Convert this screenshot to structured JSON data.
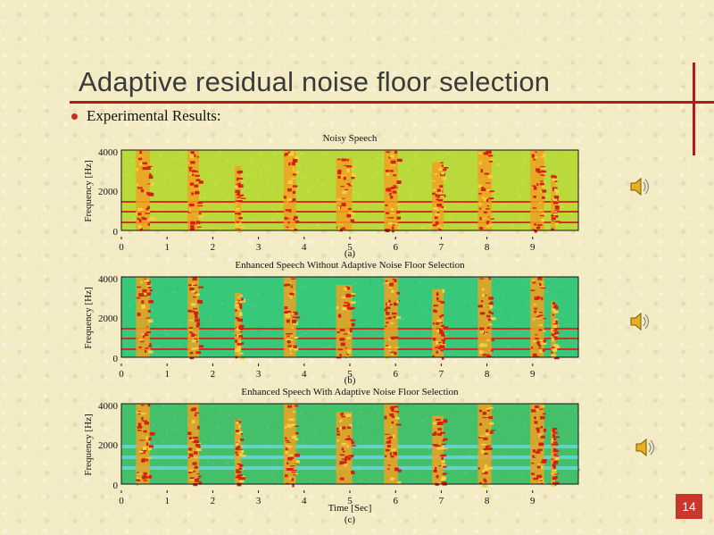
{
  "slide": {
    "title": "Adaptive residual noise floor selection",
    "bullet": "Experimental Results:",
    "page_number": "14",
    "accent_color": "#b11a1a"
  },
  "panels": [
    {
      "title": "Noisy Speech",
      "caption": "(a)",
      "xlabel": "",
      "ylabel": "Frequency [Hz]",
      "y_ticks": [
        "4000",
        "2000",
        "0"
      ],
      "x_ticks": [
        "0",
        "1",
        "2",
        "3",
        "4",
        "5",
        "6",
        "7",
        "8",
        "9"
      ],
      "background": "#bada3c",
      "speaker_icon": "speaker-icon"
    },
    {
      "title": "Enhanced Speech Without Adaptive Noise Floor Selection",
      "caption": "(b)",
      "xlabel": "",
      "ylabel": "Frequency [Hz]",
      "y_ticks": [
        "4000",
        "2000",
        "0"
      ],
      "x_ticks": [
        "0",
        "1",
        "2",
        "3",
        "4",
        "5",
        "6",
        "7",
        "8",
        "9"
      ],
      "background": "#38c87a",
      "speaker_icon": "speaker-icon"
    },
    {
      "title": "Enhanced Speech With Adaptive Noise Floor Selection",
      "caption": "(c)",
      "xlabel": "Time [Sec]",
      "ylabel": "Frequency [Hz]",
      "y_ticks": [
        "4000",
        "2000",
        "0"
      ],
      "x_ticks": [
        "0",
        "1",
        "2",
        "3",
        "4",
        "5",
        "6",
        "7",
        "8",
        "9"
      ],
      "background": "#44c06a",
      "speaker_icon": "speaker-icon"
    }
  ]
}
